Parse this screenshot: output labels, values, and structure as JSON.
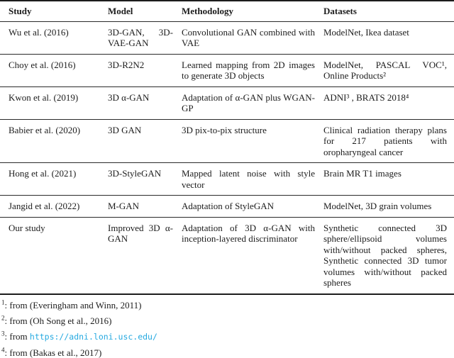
{
  "table": {
    "columns": [
      "Study",
      "Model",
      "Methodology",
      "Datasets"
    ],
    "rows": [
      {
        "study": "Wu et al. (2016)",
        "model": "3D-GAN, 3D-VAE-GAN",
        "methodology": "Convolutional GAN combined with VAE",
        "datasets": "ModelNet, Ikea dataset"
      },
      {
        "study": "Choy et al. (2016)",
        "model": "3D-R2N2",
        "methodology": "Learned mapping from 2D images to generate 3D objects",
        "datasets": "ModelNet, PASCAL VOC¹, Online Products²"
      },
      {
        "study": "Kwon et al. (2019)",
        "model": "3D α-GAN",
        "methodology": "Adaptation of α-GAN plus WGAN-GP",
        "datasets": "ADNI³ , BRATS 2018⁴"
      },
      {
        "study": "Babier et al. (2020)",
        "model": "3D GAN",
        "methodology": "3D pix-to-pix structure",
        "datasets": "Clinical radiation therapy plans for 217 patients with oropharyngeal cancer"
      },
      {
        "study": "Hong et al. (2021)",
        "model": "3D-StyleGAN",
        "methodology": "Mapped latent noise with style vector",
        "datasets": "Brain MR T1 images"
      },
      {
        "study": "Jangid et al. (2022)",
        "model": "M-GAN",
        "methodology": "Adaptation of StyleGAN",
        "datasets": "ModelNet, 3D grain volumes"
      },
      {
        "study": "Our study",
        "model": "Improved 3D α-GAN",
        "methodology": "Adaptation of 3D α-GAN with inception-layered discriminator",
        "datasets": "Synthetic connected 3D sphere/ellipsoid volumes with/without packed spheres, Synthetic connected 3D tumor volumes with/without packed spheres"
      }
    ]
  },
  "footnotes": [
    {
      "marker": "1",
      "text": ": from (Everingham and Winn, 2011)"
    },
    {
      "marker": "2",
      "text": ": from (Oh Song et al., 2016)"
    },
    {
      "marker": "3",
      "text": ": from ",
      "link": "https://adni.loni.usc.edu/"
    },
    {
      "marker": "4",
      "text": ": from (Bakas et al., 2017)"
    }
  ],
  "colors": {
    "link": "#25a9e0",
    "rule": "#1c1c1c",
    "text": "#1c1c1c"
  }
}
